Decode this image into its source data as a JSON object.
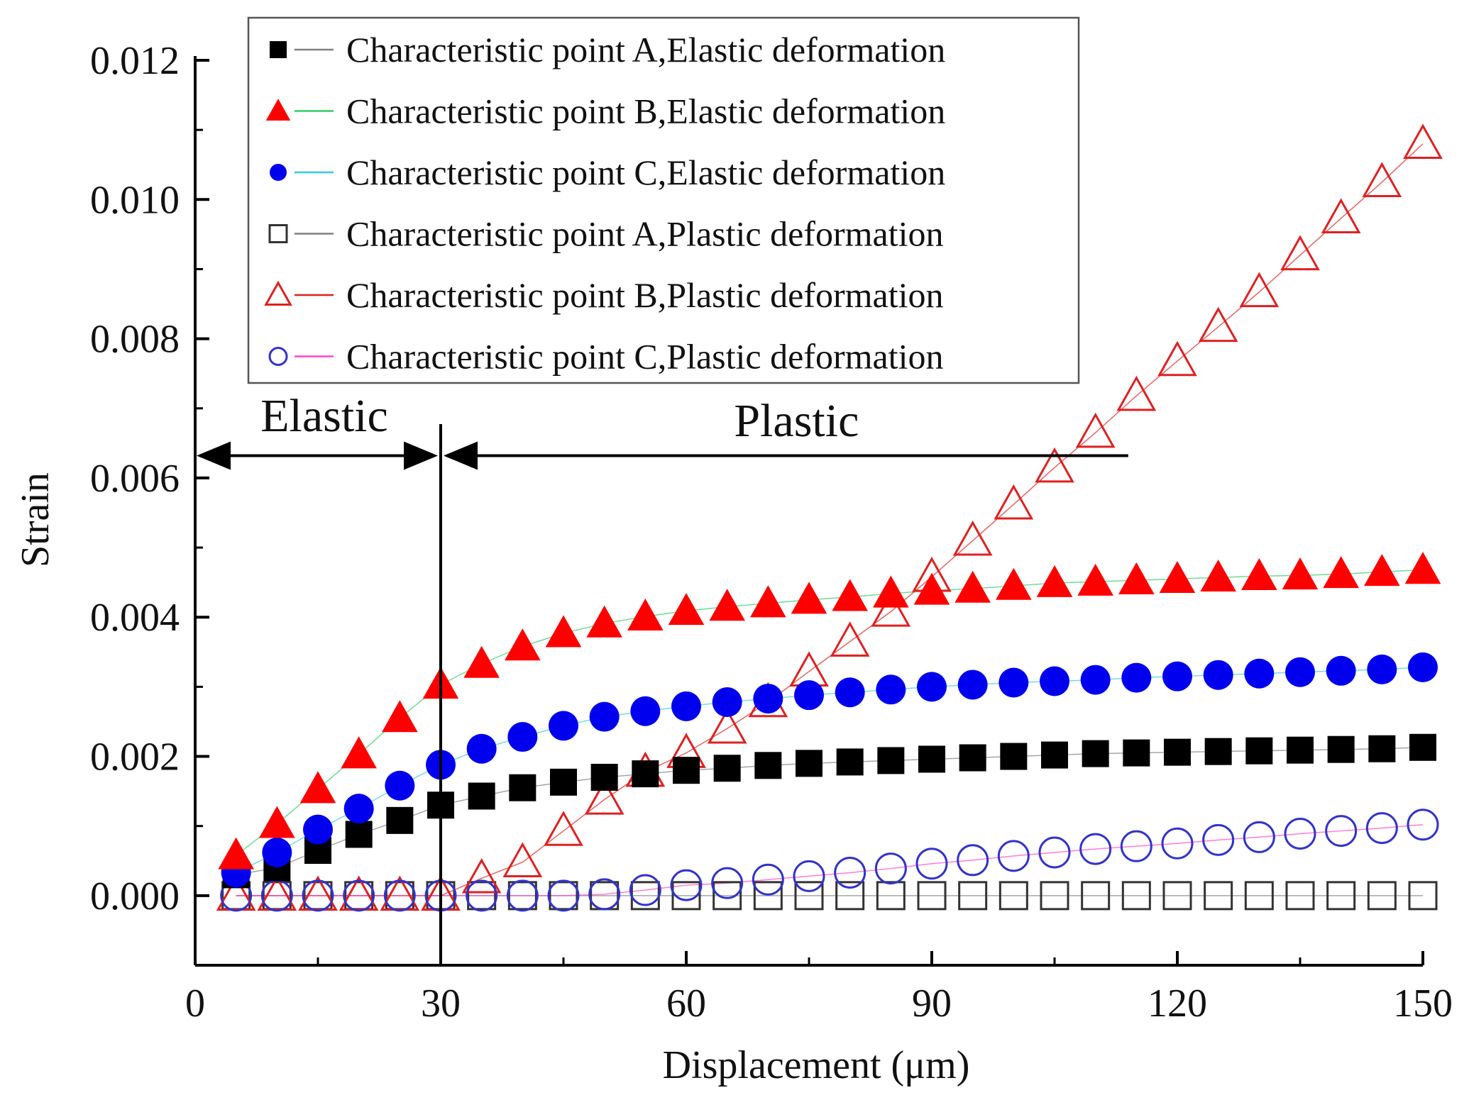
{
  "chart_data": {
    "type": "scatter",
    "xlabel": "Displacement (μm)",
    "ylabel": "Strain",
    "xlim": [
      0,
      150
    ],
    "ylim": [
      -0.001,
      0.012
    ],
    "x_ticks": [
      0,
      30,
      60,
      90,
      120,
      150
    ],
    "x_tick_labels": [
      "0",
      "30",
      "60",
      "90",
      "120",
      "150"
    ],
    "y_ticks": [
      0.0,
      0.002,
      0.004,
      0.006,
      0.008,
      0.01,
      0.012
    ],
    "y_tick_labels": [
      "0.000",
      "0.002",
      "0.004",
      "0.006",
      "0.008",
      "0.010",
      "0.012"
    ],
    "grid": false,
    "legend_position": "top",
    "x": [
      5,
      10,
      15,
      20,
      25,
      30,
      35,
      40,
      45,
      50,
      55,
      60,
      65,
      70,
      75,
      80,
      85,
      90,
      95,
      100,
      105,
      110,
      115,
      120,
      125,
      130,
      135,
      140,
      145,
      150
    ],
    "series": [
      {
        "name": "Characteristic point A,Elastic deformation",
        "marker": "square",
        "filled": true,
        "color": "#000000",
        "line_color": "#808080",
        "values": [
          0.0003,
          0.0004,
          0.00065,
          0.00088,
          0.00108,
          0.0013,
          0.00143,
          0.00155,
          0.00163,
          0.0017,
          0.00175,
          0.0018,
          0.00183,
          0.00187,
          0.0019,
          0.00192,
          0.00194,
          0.00196,
          0.00198,
          0.002,
          0.00202,
          0.00204,
          0.00205,
          0.00206,
          0.00207,
          0.00208,
          0.00209,
          0.0021,
          0.00211,
          0.00213
        ]
      },
      {
        "name": "Characteristic point B,Elastic deformation",
        "marker": "triangle",
        "filled": true,
        "color": "#ff0000",
        "line_color": "#33cc66",
        "values": [
          0.00058,
          0.00103,
          0.00153,
          0.00203,
          0.00255,
          0.00303,
          0.00333,
          0.00358,
          0.00377,
          0.00391,
          0.00401,
          0.00409,
          0.00415,
          0.0042,
          0.00425,
          0.00429,
          0.00434,
          0.00438,
          0.00441,
          0.00445,
          0.00449,
          0.00451,
          0.00453,
          0.00455,
          0.00457,
          0.00459,
          0.0046,
          0.00462,
          0.00465,
          0.00468
        ]
      },
      {
        "name": "Characteristic point C,Elastic deformation",
        "marker": "circle",
        "filled": true,
        "color": "#0000ee",
        "line_color": "#33ccdd",
        "values": [
          0.00033,
          0.00062,
          0.00095,
          0.00125,
          0.00158,
          0.00188,
          0.00211,
          0.00228,
          0.00244,
          0.00257,
          0.00265,
          0.00272,
          0.00278,
          0.00283,
          0.00288,
          0.00292,
          0.00296,
          0.003,
          0.00303,
          0.00306,
          0.00308,
          0.0031,
          0.00313,
          0.00315,
          0.00317,
          0.00319,
          0.00321,
          0.00323,
          0.00325,
          0.00328
        ]
      },
      {
        "name": "Characteristic point A,Plastic deformation",
        "marker": "square",
        "filled": false,
        "color": "#333333",
        "line_color": "#808080",
        "values": [
          0.0,
          0.0,
          0.0,
          0.0,
          0.0,
          0.0,
          0.0,
          0.0,
          0.0,
          0.0,
          0.0,
          0.0,
          0.0,
          0.0,
          0.0,
          0.0,
          0.0,
          0.0,
          0.0,
          0.0,
          0.0,
          0.0,
          0.0,
          0.0,
          0.0,
          0.0,
          0.0,
          0.0,
          0.0,
          0.0
        ]
      },
      {
        "name": "Characteristic point B,Plastic deformation",
        "marker": "triangle",
        "filled": false,
        "color": "#e02020",
        "line_color": "#e02020",
        "values": [
          0.0,
          0.0,
          0.0,
          0.0,
          0.0,
          0.0,
          0.00025,
          0.00048,
          0.00093,
          0.00138,
          0.00178,
          0.00205,
          0.0024,
          0.00278,
          0.00322,
          0.00365,
          0.00408,
          0.00458,
          0.0051,
          0.00562,
          0.00615,
          0.00665,
          0.00718,
          0.00768,
          0.00817,
          0.00867,
          0.0092,
          0.00973,
          0.01025,
          0.0108
        ]
      },
      {
        "name": "Characteristic point C,Plastic deformation",
        "marker": "circle",
        "filled": false,
        "color": "#3333cc",
        "line_color": "#ff44cc",
        "values": [
          0.0,
          0.0,
          0.0,
          0.0,
          0.0,
          0.0,
          0.0,
          0.0,
          0.0,
          2e-05,
          8e-05,
          0.00015,
          0.00018,
          0.00023,
          0.00028,
          0.00033,
          0.00039,
          0.00046,
          0.00051,
          0.00057,
          0.00062,
          0.00067,
          0.00071,
          0.00075,
          0.0008,
          0.00084,
          0.00089,
          0.00093,
          0.00097,
          0.00102
        ]
      }
    ],
    "annotations": {
      "divider_x": 30,
      "elastic_label": "Elastic",
      "plastic_label": "Plastic",
      "elastic_range": [
        0,
        30
      ],
      "plastic_range_end": 114,
      "arrow_y": 0.00632
    }
  }
}
